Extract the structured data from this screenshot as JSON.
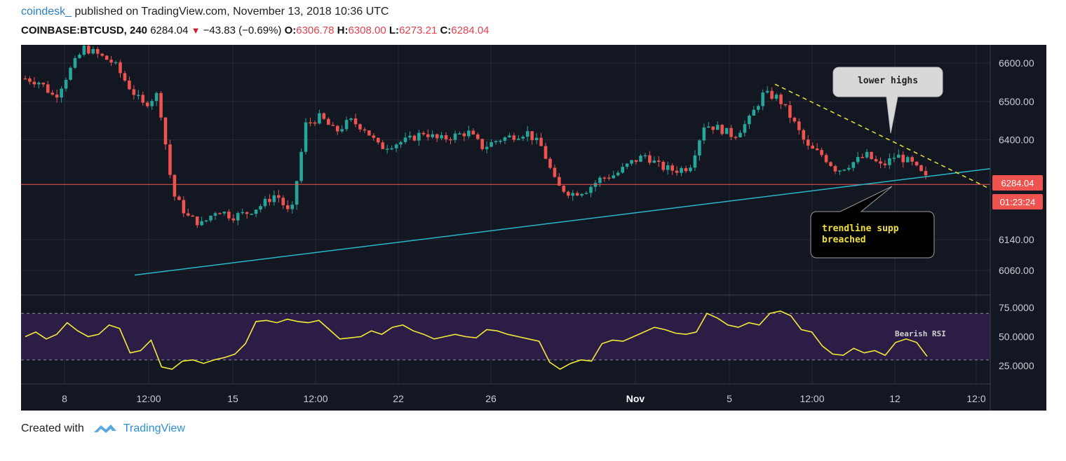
{
  "header": {
    "author": "coindesk_",
    "published_text": "published on TradingView.com, November 13, 2018 10:36 UTC",
    "symbol": "COINBASE:BTCUSD, 240",
    "last": "6284.04",
    "change": "−43.83 (−0.69%)",
    "open_label": "O:",
    "open": "6306.78",
    "high_label": "H:",
    "high": "6308.00",
    "low_label": "L:",
    "low": "6273.21",
    "close_label": "C:",
    "close": "6284.04"
  },
  "footer": {
    "created_with": "Created with",
    "brand": "TradingView"
  },
  "colors": {
    "background": "#131722",
    "up": "#26a69a",
    "down": "#ef5350",
    "trendline": "#29b6c8",
    "resistance": "#e8e337",
    "rsi_line": "#f5ea3a",
    "rsi_band": "#2b1d45"
  },
  "chart_data": [
    {
      "type": "candlestick",
      "title": "",
      "ylim": [
        6025,
        6640
      ],
      "y_ticks": [
        "6600.00",
        "6500.00",
        "6400.00",
        "6140.00",
        "6060.00"
      ],
      "y_tick_values": [
        6600,
        6500,
        6400,
        6140,
        6060
      ],
      "x_ticks": [
        "8",
        "12:00",
        "15",
        "12:00",
        "22",
        "26",
        "Nov",
        "5",
        "12:00",
        "12",
        "12:0"
      ],
      "last_price_label": "6284.04",
      "countdown_label": "01:23:24",
      "last_price": 6284.04,
      "trendline_support": [
        [
          6048,
          6325
        ]
      ],
      "resistance_line": [
        [
          6545,
          6272
        ]
      ],
      "annotations": [
        {
          "id": "lower-highs",
          "text": "lower highs"
        },
        {
          "id": "trendline-breach",
          "text": "trendline supp breached"
        }
      ],
      "closes_outline": [
        6560,
        6550,
        6510,
        6580,
        6640,
        6620,
        6600,
        6540,
        6490,
        6520,
        6260,
        6200,
        6180,
        6220,
        6200,
        6210,
        6230,
        6260,
        6200,
        6440,
        6460,
        6420,
        6450,
        6430,
        6380,
        6390,
        6400,
        6420,
        6400,
        6410,
        6420,
        6380,
        6400,
        6410,
        6420,
        6380,
        6280,
        6260,
        6270,
        6300,
        6310,
        6340,
        6360,
        6330,
        6320,
        6330,
        6440,
        6430,
        6410,
        6450,
        6520,
        6510,
        6450,
        6380,
        6360,
        6320,
        6340,
        6360,
        6330,
        6360,
        6340,
        6300
      ]
    },
    {
      "type": "line",
      "title": "",
      "series_name": "RSI",
      "ylim": [
        8,
        82
      ],
      "y_ticks": [
        "75.0000",
        "50.0000",
        "25.0000"
      ],
      "y_tick_values": [
        75,
        50,
        25
      ],
      "bands": [
        70,
        30
      ],
      "annotation": "Bearish RSI",
      "values": [
        50,
        54,
        48,
        52,
        62,
        55,
        50,
        52,
        60,
        57,
        36,
        38,
        47,
        24,
        22,
        29,
        30,
        27,
        30,
        32,
        35,
        44,
        63,
        64,
        62,
        65,
        63,
        62,
        64,
        56,
        48,
        49,
        50,
        55,
        52,
        58,
        60,
        55,
        52,
        48,
        50,
        52,
        50,
        49,
        56,
        55,
        52,
        50,
        48,
        46,
        28,
        22,
        27,
        30,
        29,
        44,
        47,
        46,
        50,
        54,
        58,
        56,
        53,
        52,
        54,
        70,
        66,
        60,
        58,
        62,
        60,
        70,
        72,
        68,
        56,
        54,
        42,
        35,
        34,
        40,
        36,
        38,
        34,
        45,
        48,
        45,
        33
      ]
    }
  ]
}
